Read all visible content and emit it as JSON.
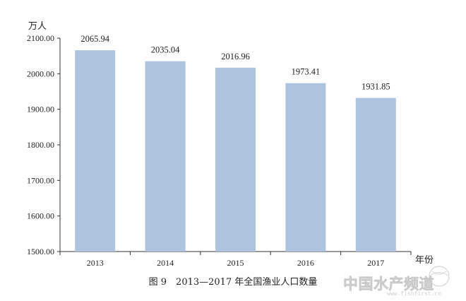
{
  "chart_data": {
    "type": "bar",
    "categories": [
      "2013",
      "2014",
      "2015",
      "2016",
      "2017"
    ],
    "values": [
      2065.94,
      2035.04,
      2016.96,
      1973.41,
      1931.85
    ],
    "value_labels": [
      "2065.94",
      "2035.04",
      "2016.96",
      "1973.41",
      "1931.85"
    ],
    "title": "图 9　2013—2017 年全国渔业人口数量",
    "xlabel": "年份",
    "ylabel": "万人",
    "ylim": [
      1500,
      2100
    ],
    "yticks": [
      1500,
      1600,
      1700,
      1800,
      1900,
      2000,
      2100
    ],
    "ytick_labels": [
      "1500.00",
      "1600.00",
      "1700.00",
      "1800.00",
      "1900.00",
      "2000.00",
      "2100.00"
    ],
    "grid": false,
    "bar_color": "#adc3de"
  },
  "watermark": {
    "text": "中国水产频道",
    "subtext": "www.fishfirst.cn"
  }
}
